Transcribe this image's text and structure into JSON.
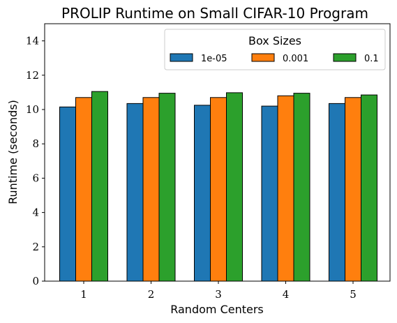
{
  "chart_data": {
    "type": "bar",
    "title": "PROLIP Runtime on Small CIFAR-10 Program",
    "xlabel": "Random Centers",
    "ylabel": "Runtime (seconds)",
    "categories": [
      "1",
      "2",
      "3",
      "4",
      "5"
    ],
    "ylim": [
      0,
      15
    ],
    "yticks": [
      0,
      2,
      4,
      6,
      8,
      10,
      12,
      14
    ],
    "legend_title": "Box Sizes",
    "legend_position": "top-right",
    "grid": false,
    "series": [
      {
        "name": "1e-05",
        "color": "#1f77b4",
        "values": [
          10.15,
          10.35,
          10.25,
          10.2,
          10.35
        ]
      },
      {
        "name": "0.001",
        "color": "#ff7f0e",
        "values": [
          10.7,
          10.7,
          10.7,
          10.8,
          10.7
        ]
      },
      {
        "name": "0.1",
        "color": "#2ca02c",
        "values": [
          11.05,
          10.95,
          10.98,
          10.95,
          10.85
        ]
      }
    ]
  }
}
